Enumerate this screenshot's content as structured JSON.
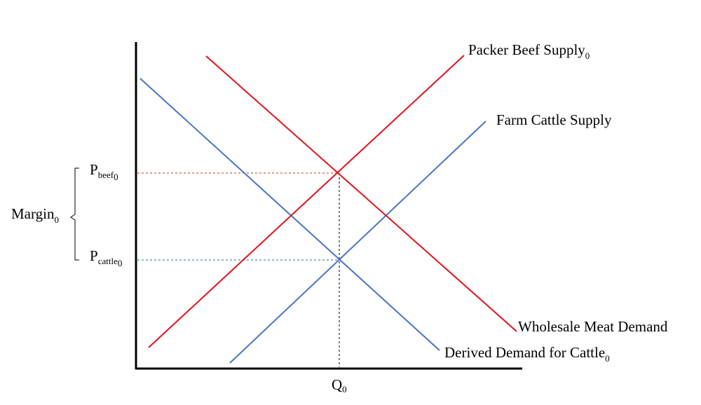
{
  "colors": {
    "axis": "#000000",
    "beef_market": "#e3121c",
    "cattle_market": "#4a74c3",
    "guide_beef": "#c0392b",
    "guide_cattle": "#2e6b8c",
    "guide_quantity": "#000000"
  },
  "labels": {
    "packer_supply": {
      "main": "Packer Beef Supply",
      "sub": "0"
    },
    "farm_supply": {
      "main": "Farm Cattle Supply"
    },
    "wholesale_demand": {
      "main": "Wholesale Meat Demand"
    },
    "derived_demand": {
      "main": "Derived Demand for Cattle",
      "sub": "0"
    },
    "p_beef": {
      "main": "P",
      "sub": "beef",
      "subsub": "0"
    },
    "p_cattle": {
      "main": "P",
      "sub": "cattle",
      "subsub": "0"
    },
    "margin": {
      "main": "Margin",
      "sub": "0"
    },
    "q0": {
      "main": "Q",
      "sub": "0"
    }
  }
}
